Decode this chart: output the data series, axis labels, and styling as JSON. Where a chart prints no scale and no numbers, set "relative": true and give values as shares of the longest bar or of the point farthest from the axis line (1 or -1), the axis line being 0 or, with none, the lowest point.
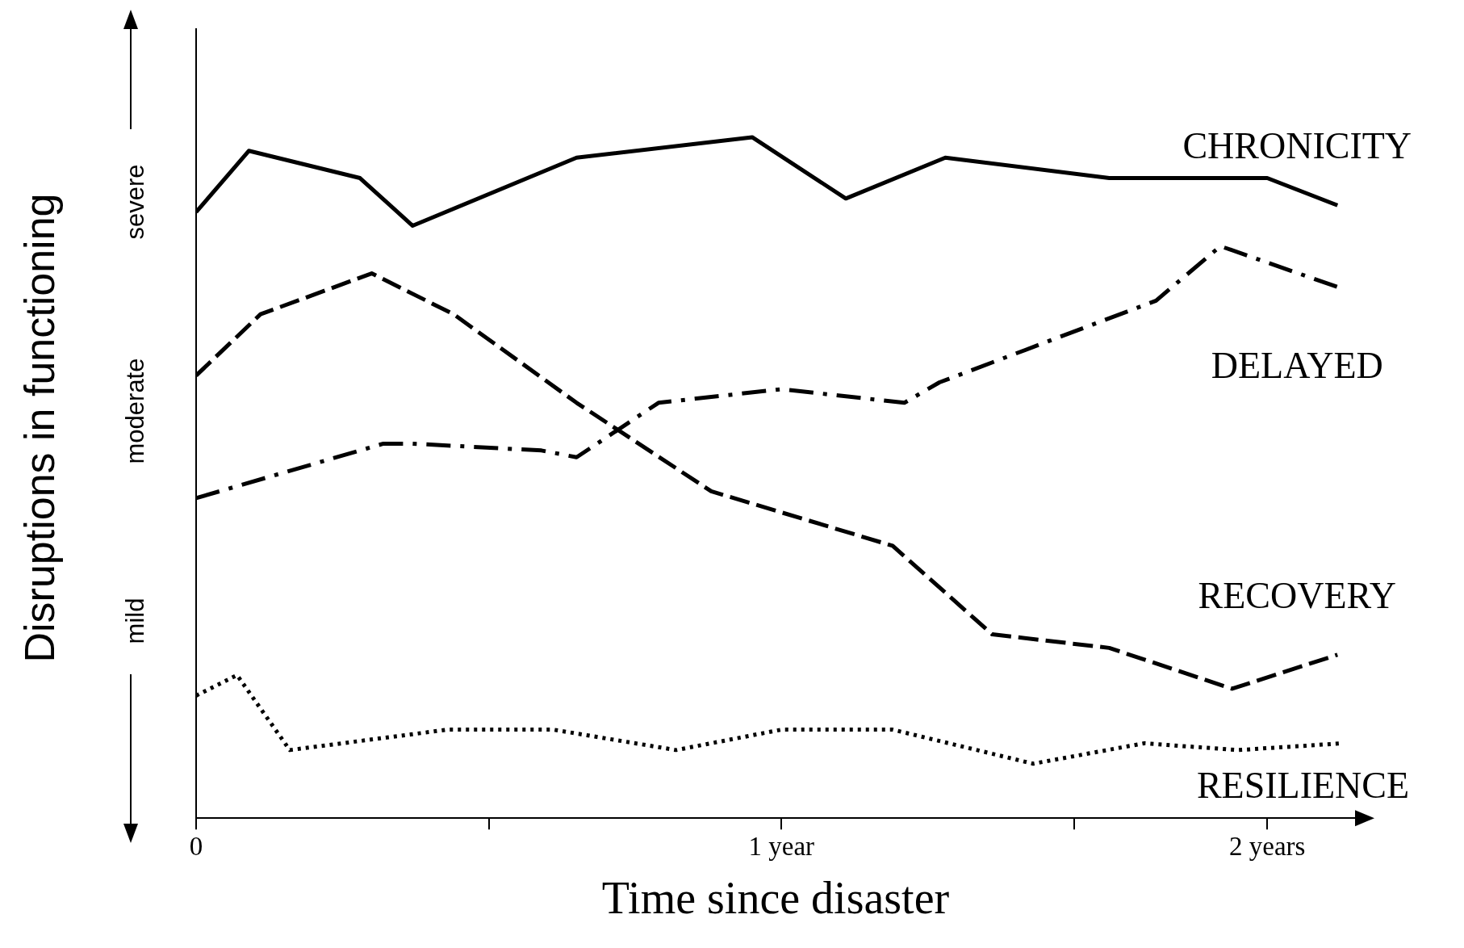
{
  "chart_data": {
    "type": "line",
    "relative": true,
    "xlabel": "Time since disaster",
    "ylabel": "Disruptions in functioning",
    "annotations": [
      "severe",
      "moderate",
      "mild"
    ],
    "xlim": [
      0,
      1.98
    ],
    "xticks": [
      0,
      {
        "value": 0.5,
        "label": null
      },
      {
        "value": 1,
        "label": "1 year"
      },
      {
        "value": 1.5,
        "label": null
      },
      {
        "value": 1.83,
        "label": "2 years"
      }
    ],
    "grid": false,
    "legend": false,
    "marker": "none",
    "series": [
      {
        "name": "CHRONICITY",
        "color": "#000000",
        "line_style": "solid",
        "x": [
          0,
          0.09,
          0.28,
          0.37,
          0.65,
          0.95,
          1.11,
          1.28,
          1.56,
          1.83,
          1.95
        ],
        "values": [
          0.89,
          0.98,
          0.94,
          0.87,
          0.97,
          1,
          0.91,
          0.97,
          0.94,
          0.94,
          0.9
        ]
      },
      {
        "name": "DELAYED",
        "color": "#000000",
        "line_style": "dashdot",
        "x": [
          0,
          0.32,
          0.37,
          0.59,
          0.65,
          0.79,
          1.0,
          1.21,
          1.27,
          1.64,
          1.75,
          1.95
        ],
        "values": [
          0.47,
          0.55,
          0.55,
          0.54,
          0.53,
          0.61,
          0.63,
          0.61,
          0.64,
          0.76,
          0.84,
          0.78
        ]
      },
      {
        "name": "RECOVERY",
        "color": "#000000",
        "line_style": "dashed",
        "x": [
          0,
          0.11,
          0.3,
          0.44,
          0.65,
          0.88,
          1.19,
          1.36,
          1.56,
          1.77,
          1.95
        ],
        "values": [
          0.65,
          0.74,
          0.8,
          0.74,
          0.61,
          0.48,
          0.4,
          0.27,
          0.25,
          0.19,
          0.24
        ]
      },
      {
        "name": "RESILIENCE",
        "color": "#000000",
        "line_style": "dotted",
        "x": [
          0,
          0.07,
          0.16,
          0.43,
          0.61,
          0.82,
          1.0,
          1.19,
          1.43,
          1.62,
          1.78,
          1.96
        ],
        "values": [
          0.18,
          0.21,
          0.1,
          0.13,
          0.13,
          0.1,
          0.13,
          0.13,
          0.08,
          0.11,
          0.1,
          0.11
        ]
      }
    ]
  }
}
